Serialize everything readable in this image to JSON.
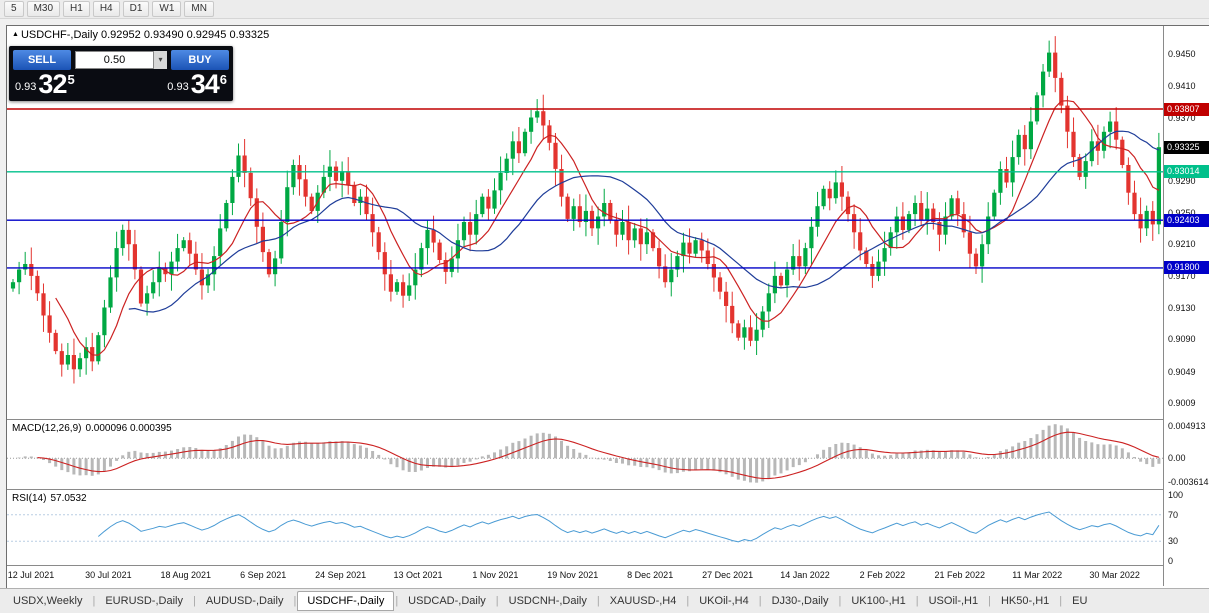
{
  "toolbar": {
    "timeframes": [
      "5",
      "M30",
      "H1",
      "H4",
      "D1",
      "W1",
      "MN"
    ]
  },
  "chart": {
    "header": {
      "icon": "▲",
      "symbol": "USDCHF-,Daily",
      "ohlc": "0.92952 0.93490 0.92945 0.93325"
    },
    "trade_panel": {
      "sell_label": "SELL",
      "buy_label": "BUY",
      "lot_size": "0.50",
      "dropdown_icon": "▾",
      "sell_price": {
        "prefix": "0.93",
        "big": "32",
        "sup": "5"
      },
      "buy_price": {
        "prefix": "0.93",
        "big": "34",
        "sup": "6"
      }
    },
    "y_axis_ticks": [
      "0.9450",
      "0.9410",
      "0.9370",
      "0.9330",
      "0.9290",
      "0.9250",
      "0.9210",
      "0.9170",
      "0.9130",
      "0.9090",
      "0.9049",
      "0.9009"
    ],
    "price_lines": [
      {
        "label": "0.93807",
        "price": 0.93807,
        "color": "#c00000"
      },
      {
        "label": "0.93014",
        "price": 0.93014,
        "color": "#00c08b"
      },
      {
        "label": "0.92403",
        "price": 0.92403,
        "color": "#0000c8"
      },
      {
        "label": "0.91800",
        "price": 0.918,
        "color": "#0000c8"
      }
    ],
    "bid_marker": {
      "label": "0.93325",
      "price": 0.93325,
      "color": "#000000"
    },
    "colors": {
      "up": "#00a843",
      "down": "#e3342f",
      "ma_fast": "#cc2222",
      "ma_slow": "#1f3d99",
      "macd_hist": "#b8b8b8",
      "macd_signal": "#cc2222",
      "rsi_line": "#4a9bd4"
    }
  },
  "indicators": {
    "macd": {
      "title": "MACD(12,26,9)",
      "values": "0.000096 0.000395",
      "axis_ticks": [
        "0.004913",
        "0.00",
        "-0.003614"
      ]
    },
    "rsi": {
      "title": "RSI(14)",
      "value": "57.0532",
      "axis_ticks": [
        "100",
        "70",
        "30",
        "0"
      ]
    }
  },
  "chart_data": {
    "type": "candlestick",
    "symbol": "USDCHF-",
    "timeframe": "Daily",
    "current_bid": 0.93325,
    "current_ask": 0.93346,
    "y_range": [
      0.8993,
      0.9478
    ],
    "horizontal_levels": [
      0.93807,
      0.93014,
      0.92403,
      0.918
    ],
    "x_labels": [
      "12 Jul 2021",
      "30 Jul 2021",
      "18 Aug 2021",
      "6 Sep 2021",
      "24 Sep 2021",
      "13 Oct 2021",
      "1 Nov 2021",
      "19 Nov 2021",
      "8 Dec 2021",
      "27 Dec 2021",
      "14 Jan 2022",
      "2 Feb 2022",
      "21 Feb 2022",
      "11 Mar 2022",
      "30 Mar 2022"
    ],
    "closes": [
      0.9162,
      0.9178,
      0.9185,
      0.917,
      0.9148,
      0.912,
      0.9098,
      0.9075,
      0.9058,
      0.907,
      0.9052,
      0.9066,
      0.908,
      0.9062,
      0.9095,
      0.913,
      0.9168,
      0.9205,
      0.9228,
      0.921,
      0.9178,
      0.9135,
      0.9148,
      0.9162,
      0.918,
      0.9172,
      0.9188,
      0.9205,
      0.9215,
      0.9198,
      0.9178,
      0.9158,
      0.9172,
      0.9195,
      0.923,
      0.9262,
      0.9295,
      0.9322,
      0.93,
      0.9268,
      0.9232,
      0.92,
      0.9172,
      0.9192,
      0.9238,
      0.9282,
      0.931,
      0.9292,
      0.927,
      0.9252,
      0.9275,
      0.9295,
      0.9308,
      0.929,
      0.9302,
      0.9285,
      0.9262,
      0.927,
      0.9248,
      0.9225,
      0.92,
      0.9172,
      0.915,
      0.9162,
      0.9145,
      0.9158,
      0.9178,
      0.9205,
      0.9228,
      0.9212,
      0.919,
      0.9175,
      0.9192,
      0.9215,
      0.9238,
      0.9222,
      0.9248,
      0.927,
      0.9255,
      0.9278,
      0.93,
      0.9318,
      0.934,
      0.9325,
      0.9352,
      0.937,
      0.9378,
      0.936,
      0.9338,
      0.9305,
      0.927,
      0.9242,
      0.9258,
      0.9238,
      0.9252,
      0.923,
      0.9245,
      0.9262,
      0.924,
      0.9222,
      0.9238,
      0.9215,
      0.923,
      0.921,
      0.9225,
      0.9205,
      0.9182,
      0.9162,
      0.9178,
      0.9195,
      0.9212,
      0.9198,
      0.9215,
      0.9202,
      0.9185,
      0.9168,
      0.915,
      0.9132,
      0.911,
      0.9092,
      0.9105,
      0.9088,
      0.9102,
      0.9125,
      0.9148,
      0.917,
      0.9158,
      0.9178,
      0.9195,
      0.9182,
      0.9205,
      0.9232,
      0.9258,
      0.928,
      0.9268,
      0.9288,
      0.927,
      0.9248,
      0.9225,
      0.9202,
      0.9185,
      0.917,
      0.9188,
      0.9205,
      0.9225,
      0.9245,
      0.9228,
      0.9248,
      0.9262,
      0.924,
      0.9255,
      0.9238,
      0.9222,
      0.9245,
      0.9268,
      0.9248,
      0.9225,
      0.9198,
      0.9182,
      0.921,
      0.9245,
      0.9275,
      0.9305,
      0.9288,
      0.932,
      0.9348,
      0.933,
      0.9365,
      0.9398,
      0.9428,
      0.9452,
      0.942,
      0.9385,
      0.9352,
      0.932,
      0.9295,
      0.9315,
      0.934,
      0.9328,
      0.9352,
      0.9365,
      0.9342,
      0.931,
      0.9275,
      0.9248,
      0.923,
      0.9252,
      0.9235,
      0.93325
    ]
  },
  "tab_bar": {
    "active": "USDCHF-,Daily",
    "tabs": [
      "USDX,Weekly",
      "EURUSD-,Daily",
      "AUDUSD-,Daily",
      "USDCHF-,Daily",
      "USDCAD-,Daily",
      "USDCNH-,Daily",
      "XAUUSD-,H4",
      "UKOil-,H4",
      "DJ30-,Daily",
      "UK100-,H1",
      "USOil-,H1",
      "HK50-,H1",
      "EU"
    ]
  }
}
